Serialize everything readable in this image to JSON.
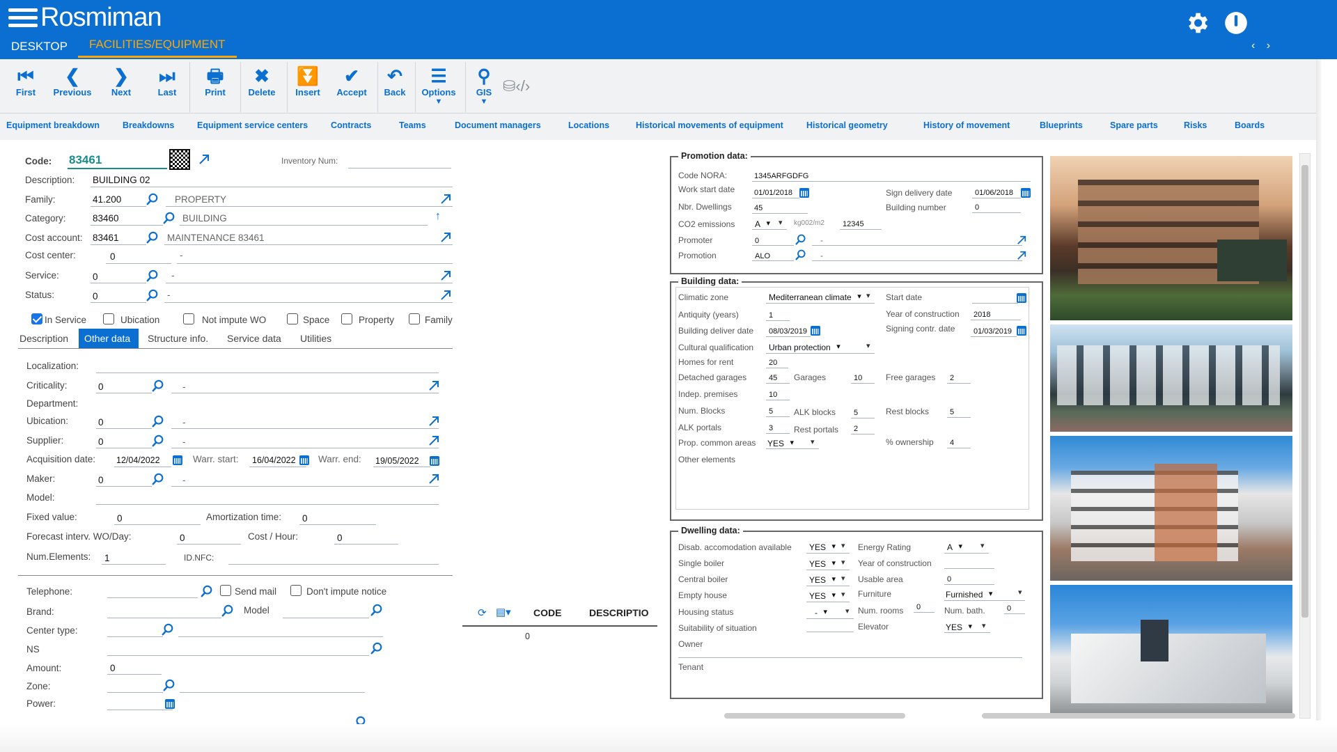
{
  "app": {
    "title": "Rosmiman",
    "tab_desktop": "DESKTOP",
    "tab_active": "FACILITIES/EQUIPMENT",
    "nav_arrows": "‹ ›"
  },
  "toolbar": [
    {
      "label": "First",
      "icon": "first-icon"
    },
    {
      "label": "Previous",
      "icon": "previous-icon"
    },
    {
      "label": "Next",
      "icon": "next-icon"
    },
    {
      "label": "Last",
      "icon": "last-icon"
    },
    {
      "label": "Print",
      "icon": "print-icon"
    },
    {
      "label": "Delete",
      "icon": "delete-icon"
    },
    {
      "label": "Insert",
      "icon": "insert-icon"
    },
    {
      "label": "Accept",
      "icon": "accept-icon"
    },
    {
      "label": "Back",
      "icon": "back-icon"
    },
    {
      "label": "Options",
      "icon": "options-icon"
    },
    {
      "label": "GIS",
      "icon": "gis-icon"
    }
  ],
  "subtabs": [
    "Equipment breakdown",
    "Breakdowns",
    "Equipment service centers",
    "Contracts",
    "Teams",
    "Document managers",
    "Locations",
    "Historical movements of equipment",
    "Historical geometry",
    "History of movement",
    "Blueprints",
    "Spare parts",
    "Risks",
    "Boards"
  ],
  "main": {
    "code_label": "Code:",
    "code": "83461",
    "inventory_label": "Inventory Num:",
    "description_label": "Description:",
    "description": "BUILDING 02",
    "family_label": "Family:",
    "family_code": "41.200",
    "family_name": "PROPERTY",
    "category_label": "Category:",
    "category_code": "83460",
    "category_name": "BUILDING",
    "cost_account_label": "Cost account:",
    "cost_account_code": "83461",
    "cost_account_name": "MAINTENANCE 83461",
    "cost_center_label": "Cost center:",
    "cost_center_code": "0",
    "cost_center_name": "-",
    "service_label": "Service:",
    "service_code": "0",
    "service_name": "-",
    "status_label": "Status:",
    "status_code": "0",
    "status_name": "-",
    "checks": [
      {
        "label": "In Service",
        "checked": true
      },
      {
        "label": "Ubication",
        "checked": false
      },
      {
        "label": "Not impute WO",
        "checked": false
      },
      {
        "label": "Space",
        "checked": false
      },
      {
        "label": "Property",
        "checked": false
      },
      {
        "label": "Family",
        "checked": false
      }
    ],
    "form_tabs": [
      "Description",
      "Other data",
      "Structure info.",
      "Service data",
      "Utilities"
    ],
    "active_form_tab": "Other data"
  },
  "other": {
    "localization_label": "Localization:",
    "criticality_label": "Criticality:",
    "criticality": "0",
    "criticality_name": "-",
    "department_label": "Department:",
    "ubication_label": "Ubication:",
    "ubication": "0",
    "ubication_name": "-",
    "supplier_label": "Supplier:",
    "supplier": "0",
    "supplier_name": "-",
    "acq_label": "Acquisition date:",
    "acq_date": "12/04/2022",
    "warr_start_label": "Warr. start:",
    "warr_start": "16/04/2022",
    "warr_end_label": "Warr. end:",
    "warr_end": "19/05/2022",
    "maker_label": "Maker:",
    "maker": "0",
    "maker_name": "-",
    "model_label": "Model:",
    "fixed_label": "Fixed value:",
    "fixed": "0",
    "amort_label": "Amortization time:",
    "amort": "0",
    "forecast_label": "Forecast interv. WO/Day:",
    "forecast": "0",
    "cost_hour_label": "Cost / Hour:",
    "cost_hour": "0",
    "num_el_label": "Num.Elements:",
    "num_el": "1",
    "nfc_label": "ID.NFC:"
  },
  "lower": {
    "telephone_label": "Telephone:",
    "send_mail": "Send mail",
    "dont_impute": "Don't impute notice",
    "brand_label": "Brand:",
    "model_label": "Model",
    "center_type_label": "Center type:",
    "ns_label": "NS",
    "amount_label": "Amount:",
    "amount": "0",
    "zone_label": "Zone:",
    "power_label": "Power:"
  },
  "grid": {
    "col_code": "CODE",
    "col_desc": "DESCRIPTIO",
    "row_value": "0"
  },
  "promotion": {
    "title": "Promotion data:",
    "code_nora_label": "Code NORA:",
    "code_nora": "1345ARFGDFG",
    "work_start_label": "Work start date",
    "work_start": "01/01/2018",
    "sign_delivery_label": "Sign delivery date",
    "sign_delivery": "01/06/2018",
    "dwellings_label": "Nbr. Dwellings",
    "dwellings": "45",
    "building_num_label": "Building number",
    "building_num": "0",
    "co2_label": "CO2 emissions",
    "co2_rating": "A",
    "co2_unit": "kg002/m2",
    "co2_value": "12345",
    "promoter_label": "Promoter",
    "promoter": "0",
    "promoter_name": "-",
    "promotion_label": "Promotion",
    "promotion": "ALO",
    "promotion_name": "-"
  },
  "building": {
    "title": "Building data:",
    "climatic_label": "Climatic zone",
    "climatic": "Mediterranean climate",
    "start_date_label": "Start date",
    "antiquity_label": "Antiquity (years)",
    "antiquity": "1",
    "year_label": "Year of construction",
    "year": "2018",
    "deliver_label": "Building deliver date",
    "deliver": "08/03/2019",
    "signing_label": "Signing contr. date",
    "signing": "01/03/2019",
    "cultural_label": "Cultural qualification",
    "cultural": "Urban protection",
    "homes_rent_label": "Homes for rent",
    "homes_rent": "20",
    "det_garages_label": "Detached garages",
    "det_garages": "45",
    "garages_label": "Garages",
    "garages": "10",
    "free_garages_label": "Free garages",
    "free_garages": "2",
    "indep_label": "Indep. premises",
    "indep": "10",
    "num_blocks_label": "Num. Blocks",
    "num_blocks": "5",
    "alk_blocks_label": "ALK blocks",
    "alk_blocks": "5",
    "rest_blocks_label": "Rest blocks",
    "rest_blocks": "5",
    "alk_portals_label": "ALK portals",
    "alk_portals": "3",
    "rest_portals_label": "Rest portals",
    "rest_portals": "2",
    "prop_common_label": "Prop. common areas",
    "prop_common": "YES",
    "ownership_label": "% ownership",
    "ownership": "4",
    "other_label": "Other elements"
  },
  "dwelling": {
    "title": "Dwelling data:",
    "disab_label": "Disab. accomodation available",
    "disab": "YES",
    "energy_label": "Energy Rating",
    "energy": "A",
    "single_label": "Single boiler",
    "single": "YES",
    "year_label": "Year of construction",
    "central_label": "Central boiler",
    "central": "YES",
    "usable_label": "Usable area",
    "usable": "0",
    "empty_label": "Empty house",
    "empty": "YES",
    "furniture_label": "Furniture",
    "furniture": "Furnished",
    "housing_label": "Housing status",
    "housing": "-",
    "rooms_label": "Num. rooms",
    "rooms": "0",
    "bath_label": "Num. bath.",
    "bath": "0",
    "suit_label": "Suitability of situation",
    "elevator_label": "Elevator",
    "elevator": "YES",
    "owner_label": "Owner",
    "tenant_label": "Tenant"
  },
  "colors": {
    "brand": "#0b6fd1",
    "accent": "#ffa700",
    "code_teal": "#1a8c8c"
  }
}
